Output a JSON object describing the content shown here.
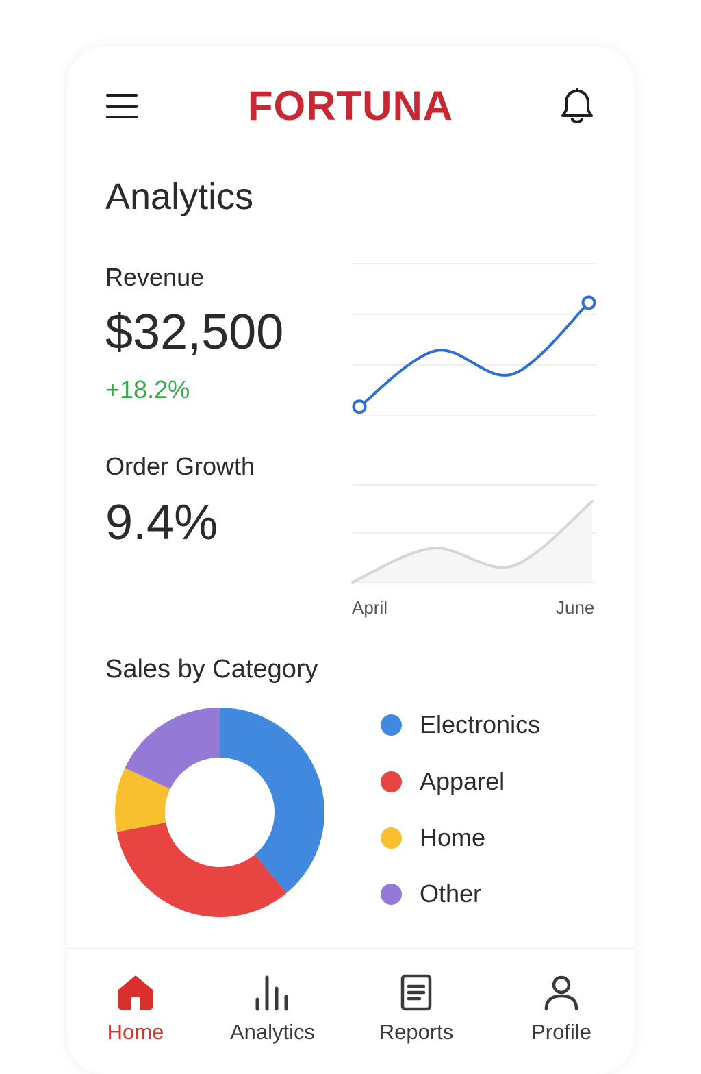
{
  "header": {
    "brand": "FORTUNA",
    "menu_icon": "hamburger-menu-icon",
    "notification_icon": "bell-icon",
    "brand_color": "#c62834"
  },
  "page": {
    "title": "Analytics"
  },
  "revenue": {
    "label": "Revenue",
    "value": "$32,500",
    "change": "+18.2%",
    "change_color": "#38a84a"
  },
  "orders": {
    "label": "Order Growth",
    "value": "9.4%"
  },
  "trend_axis": {
    "start_label": "April",
    "end_label": "June"
  },
  "sales": {
    "title": "Sales by Category"
  },
  "chart_data": [
    {
      "type": "line",
      "series": [
        {
          "values": [
            0,
            43,
            25,
            80
          ],
          "color": "#2f6fd0"
        }
      ],
      "endpoint_markers": true,
      "grid": true,
      "ylim": [
        -7,
        110
      ]
    },
    {
      "type": "area",
      "series": [
        {
          "values": [
            0,
            42,
            20,
            100
          ],
          "color": "#d6d6d6"
        }
      ],
      "x_tick_labels": [
        "April",
        "June"
      ],
      "grid": true,
      "ylim": [
        0,
        100
      ]
    },
    {
      "type": "pie",
      "donut": true,
      "categories": [
        "Electronics",
        "Apparel",
        "Home",
        "Other"
      ],
      "values": [
        39,
        33,
        10,
        18
      ],
      "colors": [
        "#4189de",
        "#e84442",
        "#f8c02e",
        "#9579d6"
      ],
      "legend": "right"
    }
  ],
  "bottom_nav": [
    {
      "label": "Home",
      "icon": "home-icon",
      "active": true
    },
    {
      "label": "Analytics",
      "icon": "bar-chart-icon",
      "active": false
    },
    {
      "label": "Reports",
      "icon": "document-icon",
      "active": false
    },
    {
      "label": "Profile",
      "icon": "user-icon",
      "active": false
    }
  ],
  "colors": {
    "active": "#d9302e",
    "inactive": "#3a3a3a"
  }
}
